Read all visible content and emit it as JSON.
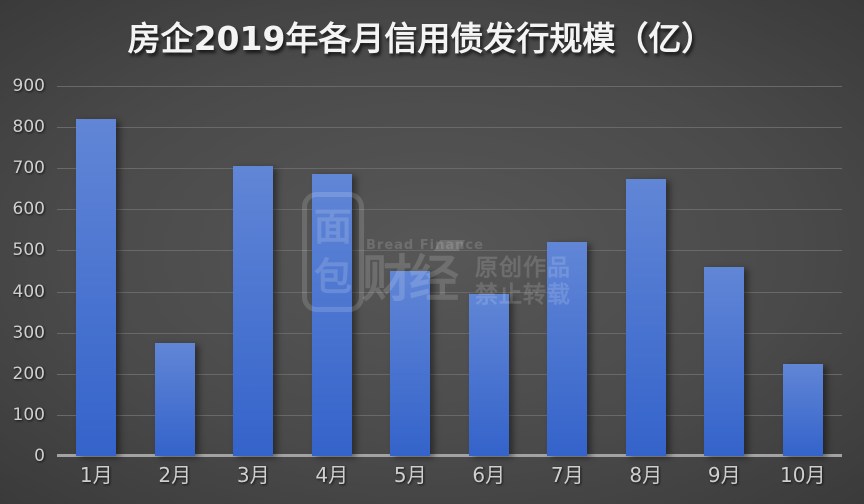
{
  "chart_data": {
    "type": "bar",
    "title": "房企2019年各月信用债发行规模（亿）",
    "categories": [
      "1月",
      "2月",
      "3月",
      "4月",
      "5月",
      "6月",
      "7月",
      "8月",
      "9月",
      "10月"
    ],
    "values": [
      820,
      275,
      705,
      685,
      450,
      395,
      520,
      675,
      460,
      225
    ],
    "xlabel": "",
    "ylabel": "",
    "ylim": [
      0,
      900
    ],
    "yticks": [
      0,
      100,
      200,
      300,
      400,
      500,
      600,
      700,
      800,
      900
    ],
    "grid": true,
    "legend": false,
    "legend_position": "none",
    "background": "dark-radial-gradient"
  },
  "watermark": {
    "logo_char_top": "面",
    "logo_char_bottom": "包",
    "brand_en": "Bread Finance",
    "brand_cn": "财经",
    "notice_line1": "原创作品",
    "notice_line2": "禁止转载"
  },
  "colors": {
    "title": "#f4f4f4",
    "bar_top": "#6186d6",
    "bar_bottom": "#3463ca",
    "gridline": "#696969",
    "axis_line": "#a3a3a3",
    "tick_label": "#cfcfcf",
    "watermark": "rgba(255,255,255,0.15)"
  }
}
